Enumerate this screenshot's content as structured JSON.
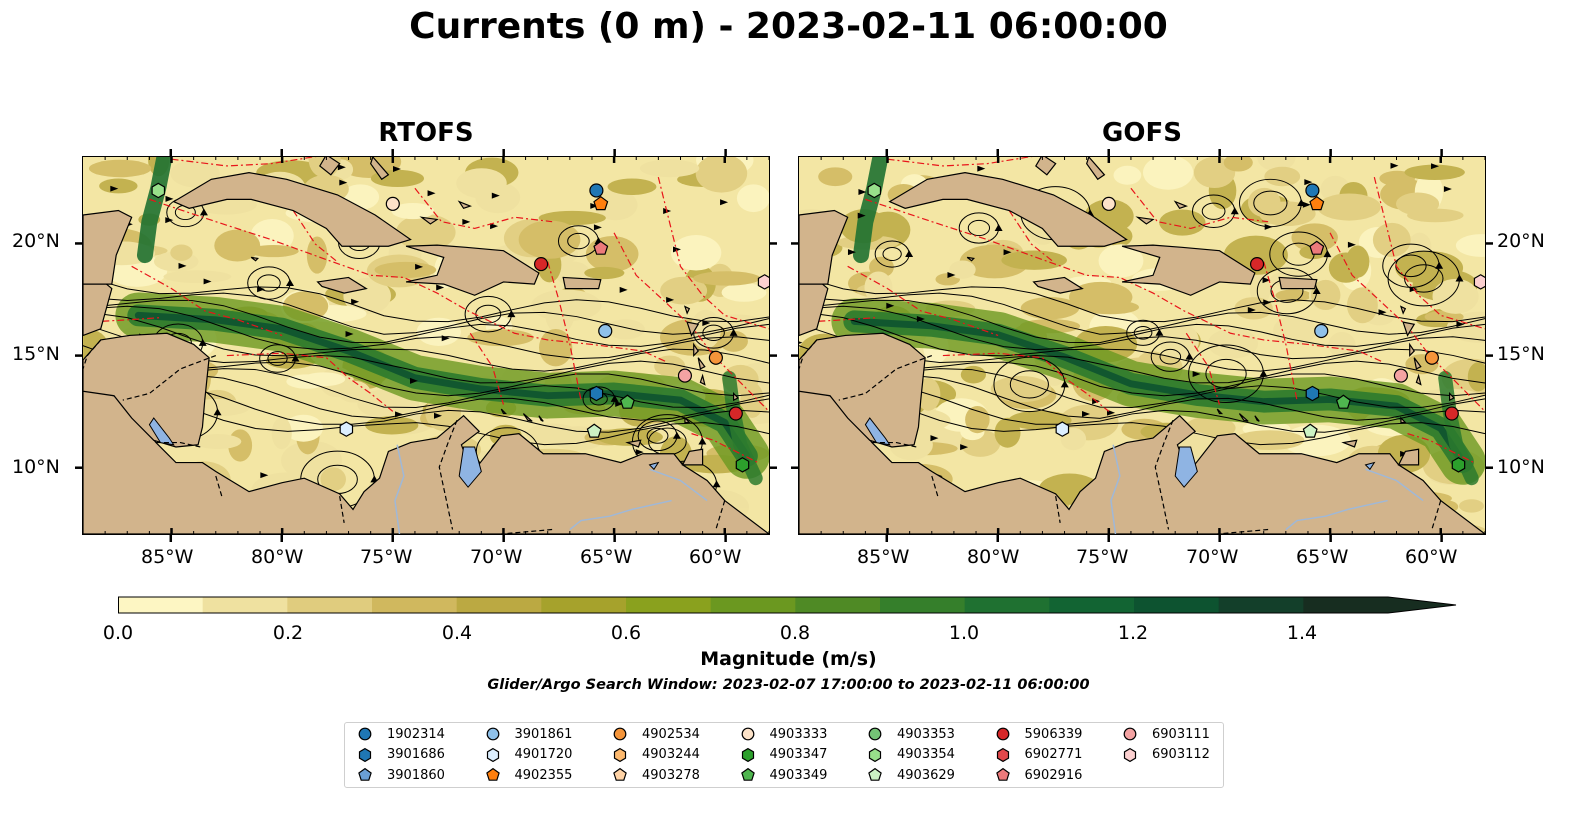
{
  "title": "Currents (0 m) - 2023-02-11 06:00:00",
  "panels": [
    {
      "title": "RTOFS"
    },
    {
      "title": "GOFS"
    }
  ],
  "axes": {
    "lon_ticks": [
      "85°W",
      "80°W",
      "75°W",
      "70°W",
      "65°W",
      "60°W"
    ],
    "lat_ticks": [
      "20°N",
      "15°N",
      "10°N"
    ]
  },
  "colorbar": {
    "label": "Magnitude (m/s)",
    "ticks": [
      "0.0",
      "0.2",
      "0.4",
      "0.6",
      "0.8",
      "1.0",
      "1.2",
      "1.4"
    ],
    "range": [
      0,
      1.5
    ],
    "extend": "max",
    "colors": [
      "#fdf6c3",
      "#efe1a0",
      "#e0cc7e",
      "#d0b85e",
      "#bba942",
      "#a6a22c",
      "#8aa11e",
      "#6b9820",
      "#4f8a25",
      "#357f2b",
      "#1f7131",
      "#126433",
      "#0d5330",
      "#133f2a",
      "#172d20"
    ]
  },
  "search_window": "Glider/Argo Search Window: 2023-02-07 17:00:00 to 2023-02-11 06:00:00",
  "legend": [
    {
      "id": "1902314",
      "marker": "circle",
      "color": "#1f77b4"
    },
    {
      "id": "3901686",
      "marker": "hexagon",
      "color": "#1f77b4"
    },
    {
      "id": "3901860",
      "marker": "pentagon",
      "color": "#6a9fd6"
    },
    {
      "id": "3901861",
      "marker": "circle",
      "color": "#8fc1ea"
    },
    {
      "id": "4901720",
      "marker": "hexagon",
      "color": "#dcefff"
    },
    {
      "id": "4902355",
      "marker": "pentagon",
      "color": "#ff7f0e"
    },
    {
      "id": "4902534",
      "marker": "circle",
      "color": "#f5953a"
    },
    {
      "id": "4903244",
      "marker": "hexagon",
      "color": "#fdb96e"
    },
    {
      "id": "4903278",
      "marker": "pentagon",
      "color": "#ffd3a6"
    },
    {
      "id": "4903333",
      "marker": "circle",
      "color": "#fde3c9"
    },
    {
      "id": "4903347",
      "marker": "hexagon",
      "color": "#2ca02c"
    },
    {
      "id": "4903349",
      "marker": "pentagon",
      "color": "#4fb64f"
    },
    {
      "id": "4903353",
      "marker": "circle",
      "color": "#74c476"
    },
    {
      "id": "4903354",
      "marker": "hexagon",
      "color": "#98df8a"
    },
    {
      "id": "4903629",
      "marker": "pentagon",
      "color": "#ccf2c4"
    },
    {
      "id": "5906339",
      "marker": "circle",
      "color": "#d62728"
    },
    {
      "id": "6902771",
      "marker": "hexagon",
      "color": "#e0474a"
    },
    {
      "id": "6902916",
      "marker": "pentagon",
      "color": "#ec7a7b"
    },
    {
      "id": "6903111",
      "marker": "circle",
      "color": "#f4a3a3"
    },
    {
      "id": "6903112",
      "marker": "hexagon",
      "color": "#fcd0d0"
    }
  ],
  "floats": [
    {
      "id": "1902314",
      "lon": -65.8,
      "lat": 22.4
    },
    {
      "id": "4902355",
      "lon": -65.6,
      "lat": 21.8
    },
    {
      "id": "4903333",
      "lon": -75.0,
      "lat": 21.8
    },
    {
      "id": "4903354",
      "lon": -85.6,
      "lat": 22.4
    },
    {
      "id": "6902916",
      "lon": -65.6,
      "lat": 19.8
    },
    {
      "id": "5906339",
      "lon": -68.3,
      "lat": 19.1
    },
    {
      "id": "6903112",
      "lon": -58.2,
      "lat": 18.3
    },
    {
      "id": "3901861",
      "lon": -65.4,
      "lat": 16.1
    },
    {
      "id": "4902534",
      "lon": -60.4,
      "lat": 14.9
    },
    {
      "id": "6903111",
      "lon": -61.8,
      "lat": 14.1
    },
    {
      "id": "3901686",
      "lon": -65.8,
      "lat": 13.3
    },
    {
      "id": "4903349",
      "lon": -64.4,
      "lat": 12.9
    },
    {
      "id": "5906339",
      "lon": -59.5,
      "lat": 12.4
    },
    {
      "id": "4901720",
      "lon": -77.1,
      "lat": 11.7
    },
    {
      "id": "4903629",
      "lon": -65.9,
      "lat": 11.6
    },
    {
      "id": "4903347",
      "lon": -59.2,
      "lat": 10.1
    }
  ]
}
